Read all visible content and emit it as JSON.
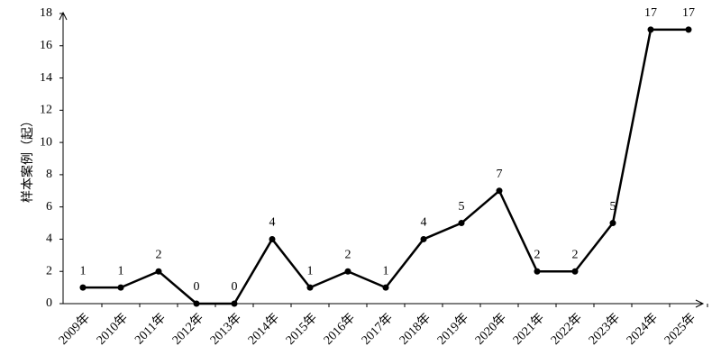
{
  "chart_data": {
    "type": "line",
    "y_label": "样本案例（起）",
    "categories": [
      "2009年",
      "2010年",
      "2011年",
      "2012年",
      "2013年",
      "2014年",
      "2015年",
      "2016年",
      "2017年",
      "2018年",
      "2019年",
      "2020年",
      "2021年",
      "2022年",
      "2023年",
      "2024年",
      "2025年"
    ],
    "values": [
      1,
      1,
      2,
      0,
      0,
      4,
      1,
      2,
      1,
      4,
      5,
      7,
      2,
      2,
      5,
      17,
      17
    ],
    "color": "#000000",
    "ylim": [
      0,
      18
    ],
    "yticks": [
      0,
      2,
      4,
      6,
      8,
      10,
      12,
      14,
      16,
      18
    ],
    "grid": false
  }
}
